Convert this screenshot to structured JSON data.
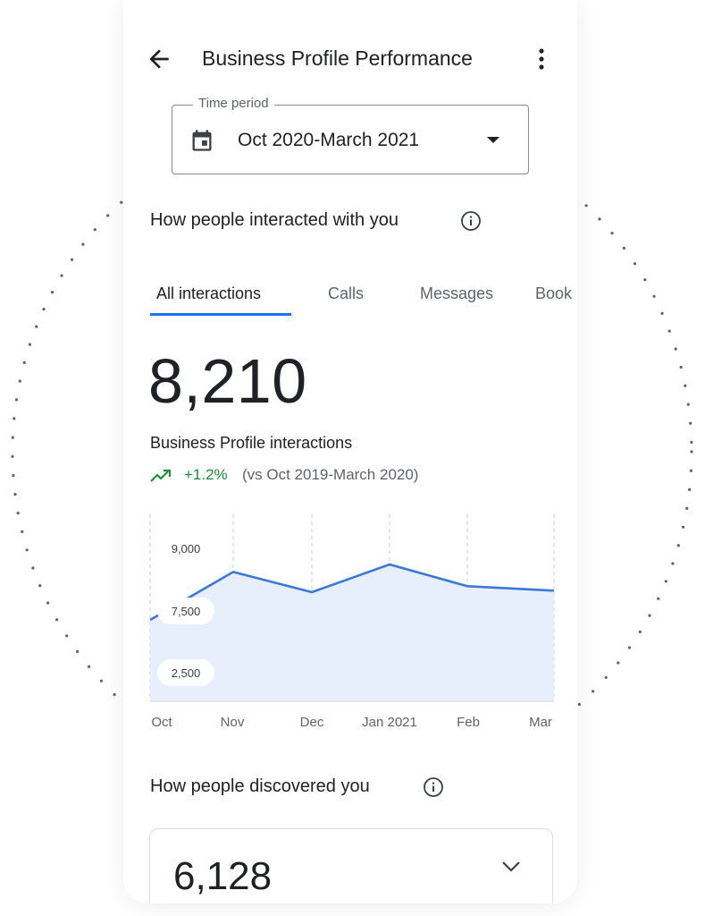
{
  "header": {
    "title": "Business Profile Performance",
    "back_icon": "arrow-back-icon",
    "menu_icon": "more-vert-icon"
  },
  "time_period": {
    "label": "Time period",
    "value": "Oct 2020-March 2021",
    "icon": "calendar-icon"
  },
  "interactions": {
    "section_title": "How people interacted with you",
    "tabs": [
      {
        "label": "All interactions",
        "active": true
      },
      {
        "label": "Calls",
        "active": false
      },
      {
        "label": "Messages",
        "active": false
      },
      {
        "label": "Book",
        "active": false
      }
    ],
    "total": "8,210",
    "total_label": "Business Profile interactions",
    "trend_value": "+1.2%",
    "trend_compare": "(vs Oct 2019-March 2020)"
  },
  "chart_data": {
    "type": "area",
    "categories": [
      "Oct",
      "Nov",
      "Dec",
      "Jan 2021",
      "Feb",
      "Mar"
    ],
    "series": [
      {
        "values": [
          5500,
          8700,
          7350,
          9200,
          7750,
          7450
        ]
      }
    ],
    "y_tick_labels": [
      "9,000",
      "7,500",
      "2,500"
    ],
    "grid": "vertical-dashed",
    "colors": {
      "line": "#3c78d8",
      "fill": "#e8effc"
    }
  },
  "discovery": {
    "section_title": "How people discovered you",
    "total": "6,128"
  },
  "colors": {
    "accent": "#1a73e8",
    "positive": "#1e8e3e",
    "text_primary": "#202124",
    "text_secondary": "#5f6368"
  }
}
